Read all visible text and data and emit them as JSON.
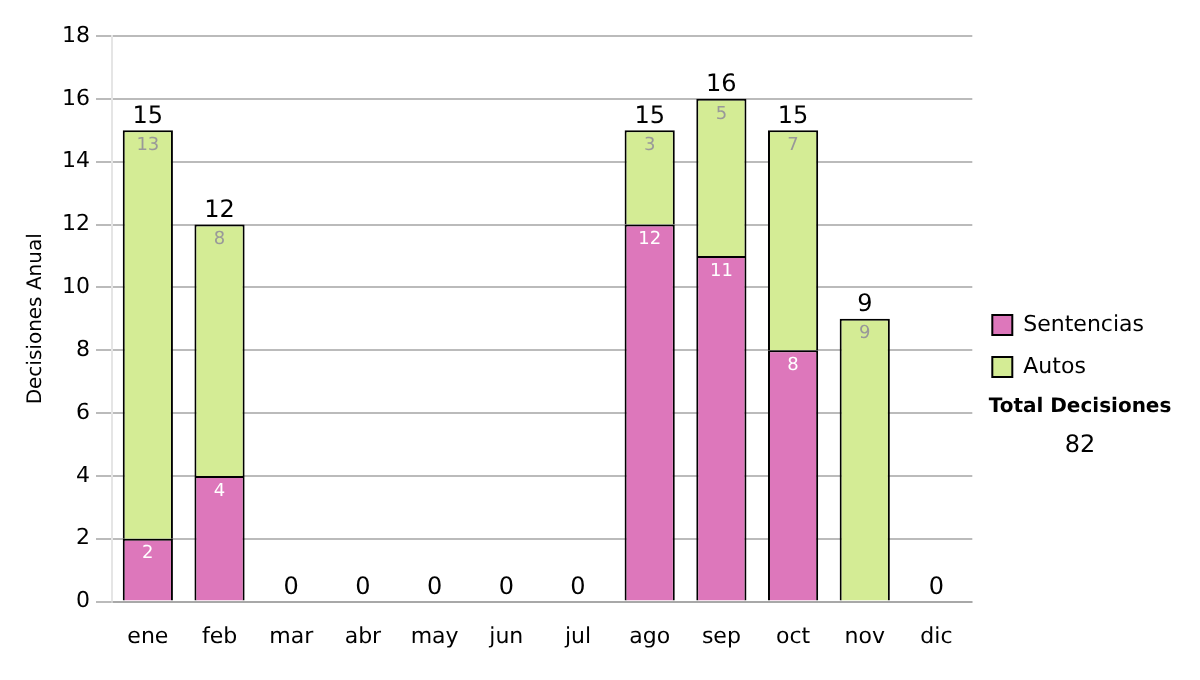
{
  "chart_data": {
    "type": "bar",
    "stacked": true,
    "ylabel": "Decisiones Anual",
    "categories": [
      "ene",
      "feb",
      "mar",
      "abr",
      "may",
      "jun",
      "jul",
      "ago",
      "sep",
      "oct",
      "nov",
      "dic"
    ],
    "series": [
      {
        "name": "Sentencias",
        "color": "#dd77bb",
        "values": [
          2,
          4,
          0,
          0,
          0,
          0,
          0,
          12,
          11,
          8,
          0,
          0
        ],
        "value_labels": [
          "2",
          "4",
          null,
          null,
          null,
          null,
          null,
          "12",
          "11",
          "8",
          null,
          null
        ]
      },
      {
        "name": "Autos",
        "color": "#d4ec95",
        "values": [
          13,
          8,
          0,
          0,
          0,
          0,
          0,
          3,
          5,
          7,
          9,
          0
        ],
        "value_labels": [
          "13",
          "8",
          null,
          null,
          null,
          null,
          null,
          "3",
          "5",
          "7",
          "9",
          null
        ]
      }
    ],
    "totals": [
      "15",
      "12",
      "0",
      "0",
      "0",
      "0",
      "0",
      "15",
      "16",
      "15",
      "9",
      "0"
    ],
    "ylim": [
      0,
      18
    ],
    "yticks": [
      0,
      2,
      4,
      6,
      8,
      10,
      12,
      14,
      16,
      18
    ],
    "grid": "y",
    "legend": "right",
    "annotations": [
      "Total Decisiones",
      "82"
    ]
  }
}
